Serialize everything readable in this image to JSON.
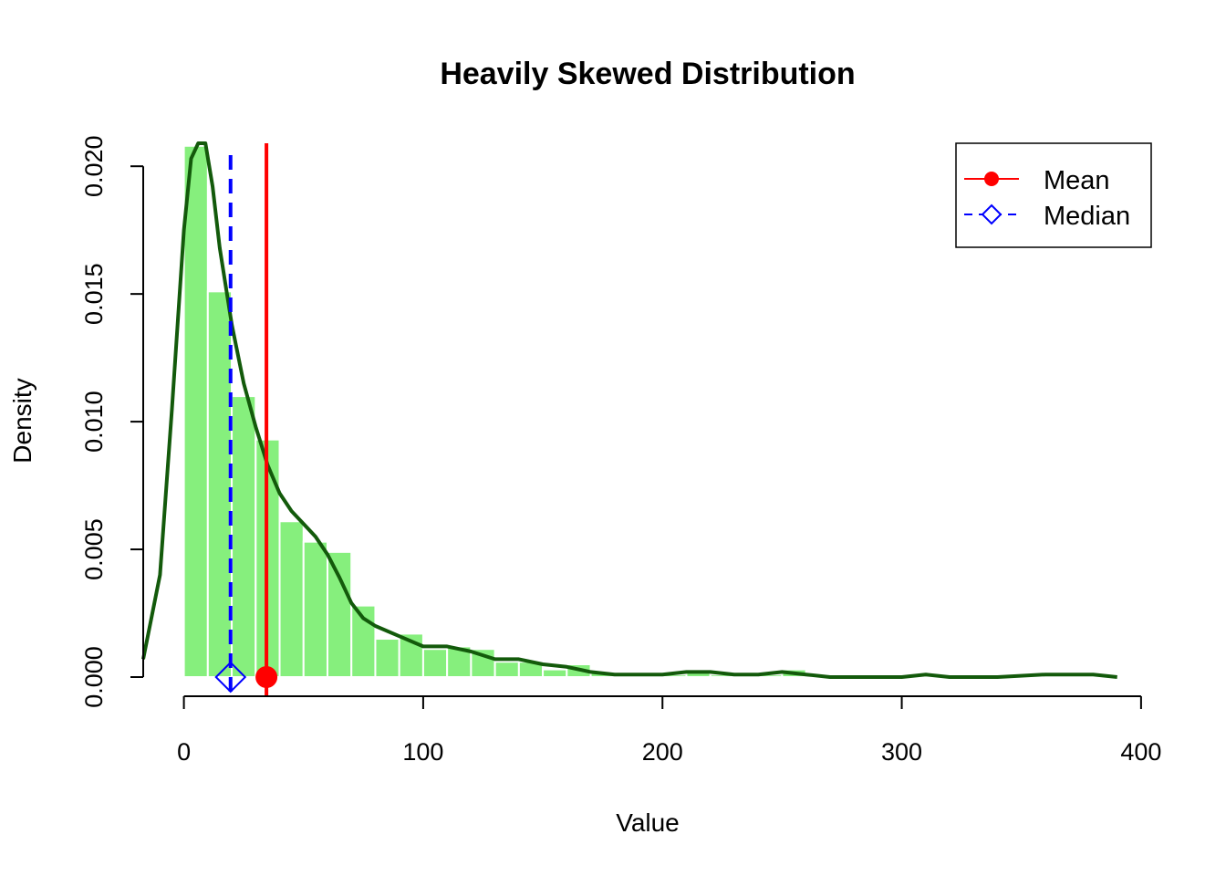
{
  "chart_data": {
    "type": "bar",
    "title": "Heavily Skewed Distribution",
    "xlabel": "Value",
    "ylabel": "Density",
    "xlim": [
      -17,
      405
    ],
    "ylim": [
      0,
      0.0209
    ],
    "x_ticks": [
      0,
      100,
      200,
      300,
      400
    ],
    "x_tick_labels": [
      "0",
      "100",
      "200",
      "300",
      "400"
    ],
    "y_ticks": [
      0,
      0.005,
      0.01,
      0.015,
      0.02
    ],
    "y_tick_labels": [
      "0.000",
      "0.005",
      "0.010",
      "0.015",
      "0.020"
    ],
    "histogram": {
      "bin_width": 10,
      "bin_starts": [
        0,
        10,
        20,
        30,
        40,
        50,
        60,
        70,
        80,
        90,
        100,
        110,
        120,
        130,
        140,
        150,
        160,
        170,
        180,
        190,
        200,
        210,
        220,
        230,
        240,
        250
      ],
      "density": [
        0.0208,
        0.0151,
        0.011,
        0.0093,
        0.0061,
        0.0053,
        0.0049,
        0.0028,
        0.0015,
        0.0017,
        0.0011,
        0.0012,
        0.0011,
        0.0006,
        0.0006,
        0.0003,
        0.0005,
        0.0002,
        0.0001,
        0.0001,
        0.0001,
        0.0002,
        0.0001,
        0.0001,
        0.0001,
        0.0003
      ],
      "color": "#86ef7d"
    },
    "density_curve": {
      "color": "#135a0b",
      "x": [
        -17,
        -10,
        -5,
        0,
        3,
        6,
        9,
        12,
        15,
        20,
        25,
        30,
        35,
        40,
        45,
        50,
        55,
        60,
        65,
        70,
        75,
        80,
        90,
        100,
        110,
        120,
        130,
        140,
        150,
        160,
        170,
        180,
        190,
        200,
        210,
        220,
        230,
        240,
        250,
        260,
        270,
        280,
        300,
        310,
        320,
        340,
        360,
        380,
        390
      ],
      "y": [
        0.0007,
        0.004,
        0.0105,
        0.0175,
        0.0203,
        0.0215,
        0.021,
        0.0192,
        0.0168,
        0.0138,
        0.0115,
        0.0098,
        0.0083,
        0.0072,
        0.0065,
        0.006,
        0.0055,
        0.0048,
        0.0039,
        0.0029,
        0.0023,
        0.002,
        0.0016,
        0.0012,
        0.0012,
        0.001,
        0.0007,
        0.0007,
        0.0005,
        0.0004,
        0.0002,
        0.0001,
        0.0001,
        0.0001,
        0.0002,
        0.0002,
        0.0001,
        0.0001,
        0.0002,
        0.0001,
        0.0,
        0.0,
        0.0,
        0.0001,
        0.0,
        0.0,
        0.0001,
        0.0001,
        0.0
      ]
    },
    "mean": {
      "value": 34.5,
      "color": "#ff0000",
      "marker": "filled-circle",
      "line": "solid"
    },
    "median": {
      "value": 19.5,
      "color": "#0000ff",
      "marker": "open-diamond",
      "line": "dashed"
    },
    "legend": {
      "placement": "top-right",
      "entries": [
        {
          "label": "Mean",
          "color": "#ff0000",
          "marker": "filled-circle",
          "line": "solid"
        },
        {
          "label": "Median",
          "color": "#0000ff",
          "marker": "open-diamond",
          "line": "dashed"
        }
      ]
    }
  }
}
